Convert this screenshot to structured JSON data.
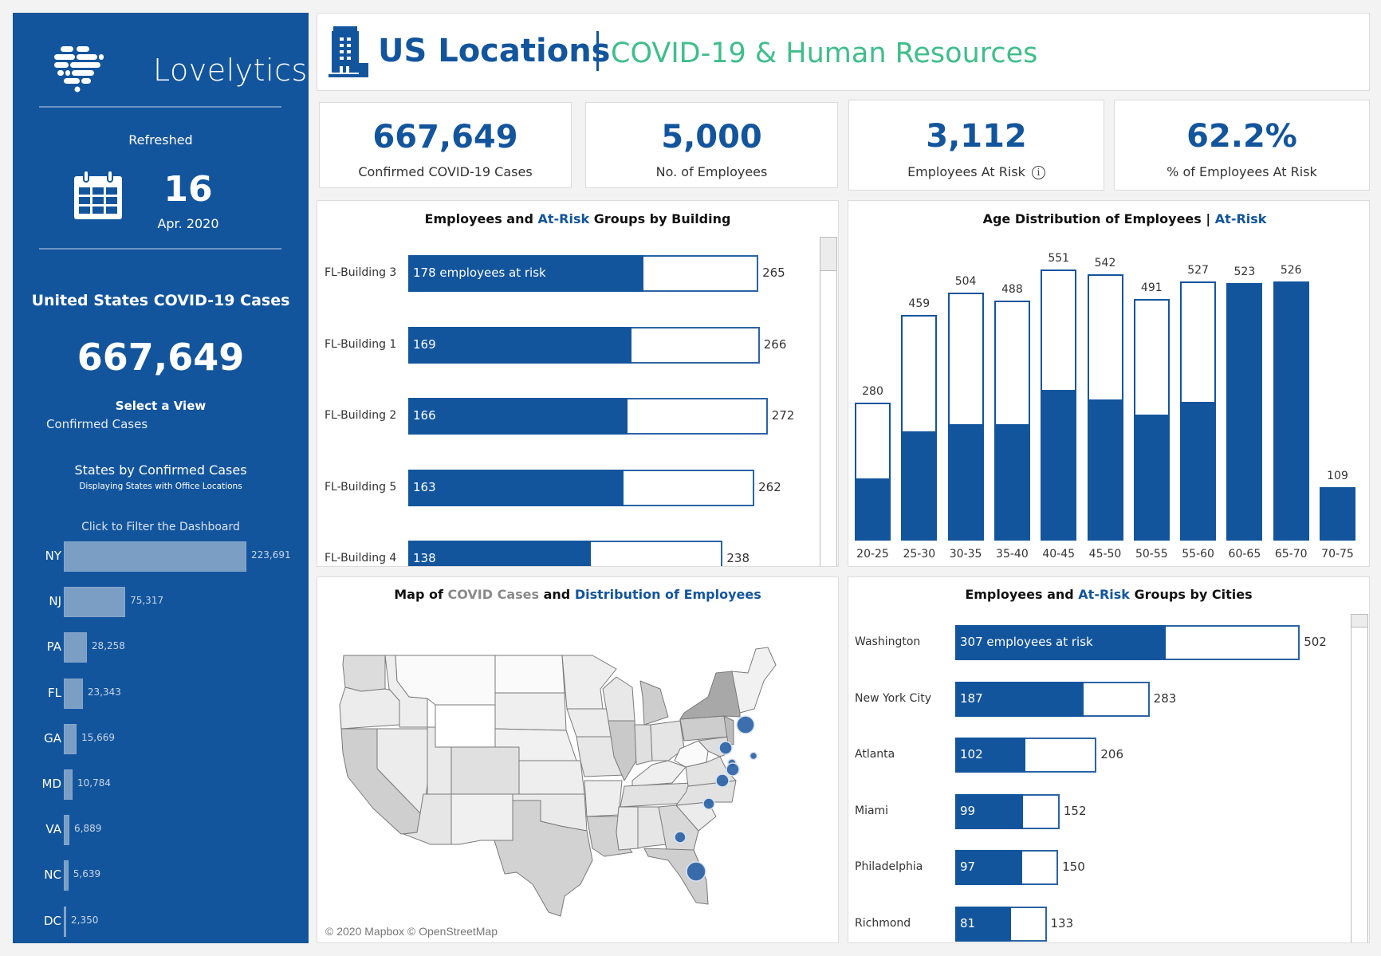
{
  "sidebar": {
    "brand": "Lovelytics",
    "refreshed_label": "Refreshed",
    "refreshed_day": "16",
    "refreshed_month": "Apr. 2020",
    "us_cases_title": "United States COVID-19 Cases",
    "us_cases_value": "667,649",
    "select_view_label": "Select a View",
    "select_view_value": "Confirmed Cases",
    "states_title": "States by Confirmed Cases",
    "states_subtitle": "Displaying States with Office Locations",
    "click_to_filter": "Click to Filter the Dashboard",
    "states": [
      {
        "abbr": "NY",
        "value": 223691,
        "label": "223,691"
      },
      {
        "abbr": "NJ",
        "value": 75317,
        "label": "75,317"
      },
      {
        "abbr": "PA",
        "value": 28258,
        "label": "28,258"
      },
      {
        "abbr": "FL",
        "value": 23343,
        "label": "23,343"
      },
      {
        "abbr": "GA",
        "value": 15669,
        "label": "15,669"
      },
      {
        "abbr": "MD",
        "value": 10784,
        "label": "10,784"
      },
      {
        "abbr": "VA",
        "value": 6889,
        "label": "6,889"
      },
      {
        "abbr": "NC",
        "value": 5639,
        "label": "5,639"
      },
      {
        "abbr": "DC",
        "value": 2350,
        "label": "2,350"
      }
    ]
  },
  "header": {
    "title": "US Locations",
    "subtitle": "COVID-19 & Human Resources",
    "icon": "office-building-icon"
  },
  "kpis": [
    {
      "value": "667,649",
      "label": "Confirmed COVID-19 Cases"
    },
    {
      "value": "5,000",
      "label": "No. of Employees"
    },
    {
      "value": "3,112",
      "label": "Employees At Risk",
      "info_icon": "i"
    },
    {
      "value": "62.2%",
      "label": "% of Employees At Risk"
    }
  ],
  "colors": {
    "brand_blue": "#13559d",
    "accent_green": "#3fbe8b",
    "state_bar": "#7b9ec4",
    "covid_grey": "#8a8a8a"
  },
  "chart_data": [
    {
      "id": "buildings",
      "type": "bar",
      "orientation": "horizontal",
      "title_parts": [
        "Employees and ",
        "At-Risk",
        " Groups by Building"
      ],
      "categories": [
        "FL-Building 3",
        "FL-Building 1",
        "FL-Building 2",
        "FL-Building 5",
        "FL-Building 4"
      ],
      "series": [
        {
          "name": "At-Risk Employees",
          "values": [
            178,
            169,
            166,
            163,
            138
          ]
        },
        {
          "name": "Total Employees",
          "values": [
            265,
            266,
            272,
            262,
            238
          ]
        }
      ],
      "first_label_suffix": " employees at risk"
    },
    {
      "id": "age",
      "type": "bar",
      "orientation": "vertical",
      "title_parts": [
        "Age Distribution of Employees | ",
        "At-Risk"
      ],
      "categories": [
        "20-25",
        "25-30",
        "30-35",
        "35-40",
        "40-45",
        "45-50",
        "50-55",
        "55-60",
        "60-65",
        "65-70",
        "70-75"
      ],
      "series": [
        {
          "name": "Total Employees",
          "values": [
            280,
            459,
            504,
            488,
            551,
            542,
            491,
            527,
            523,
            526,
            109
          ]
        },
        {
          "name": "At-Risk Employees",
          "values": [
            126,
            222,
            237,
            237,
            306,
            287,
            256,
            282,
            523,
            526,
            109
          ]
        }
      ],
      "ylim": [
        0,
        551
      ]
    },
    {
      "id": "cities",
      "type": "bar",
      "orientation": "horizontal",
      "title_parts": [
        "Employees and ",
        "At-Risk",
        " Groups by Cities"
      ],
      "categories": [
        "Washington",
        "New York City",
        "Atlanta",
        "Miami",
        "Philadelphia",
        "Richmond"
      ],
      "series": [
        {
          "name": "At-Risk Employees",
          "values": [
            307,
            187,
            102,
            99,
            97,
            81
          ]
        },
        {
          "name": "Total Employees",
          "values": [
            502,
            283,
            206,
            152,
            150,
            133
          ]
        }
      ],
      "first_label_suffix": " employees at risk"
    }
  ],
  "map": {
    "title_parts": [
      "Map of ",
      "COVID Cases",
      " and ",
      "Distribution of Employees"
    ],
    "credit": "© 2020 Mapbox © OpenStreetMap",
    "employee_bubbles": [
      {
        "place": "New York",
        "size": "large"
      },
      {
        "place": "Philadelphia",
        "size": "medium"
      },
      {
        "place": "New Jersey",
        "size": "small"
      },
      {
        "place": "Maryland",
        "size": "small"
      },
      {
        "place": "Washington DC",
        "size": "medium"
      },
      {
        "place": "Richmond",
        "size": "medium"
      },
      {
        "place": "North Carolina",
        "size": "medium"
      },
      {
        "place": "Atlanta",
        "size": "medium"
      },
      {
        "place": "Miami",
        "size": "large"
      }
    ]
  }
}
